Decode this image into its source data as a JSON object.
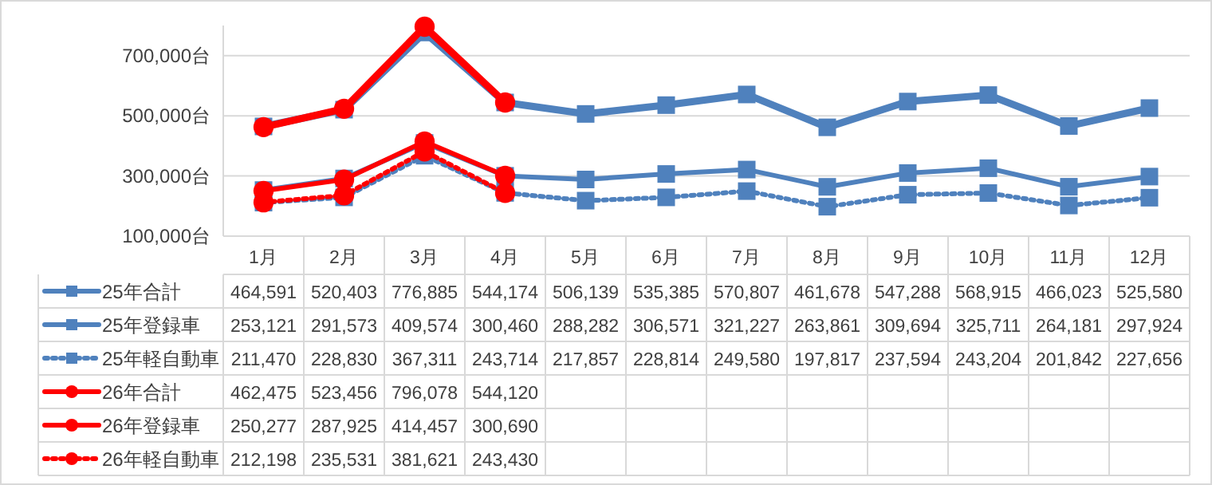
{
  "chart_data": {
    "type": "line",
    "categories": [
      "1月",
      "2月",
      "3月",
      "4月",
      "5月",
      "6月",
      "7月",
      "8月",
      "9月",
      "10月",
      "11月",
      "12月"
    ],
    "series": [
      {
        "name": "25年合計",
        "color": "#4f81bd",
        "marker": "square",
        "line_style": "solid",
        "values": [
          464591,
          520403,
          776885,
          544174,
          506139,
          535385,
          570807,
          461678,
          547288,
          568915,
          466023,
          525580
        ],
        "value_labels": [
          "464,591",
          "520,403",
          "776,885",
          "544,174",
          "506,139",
          "535,385",
          "570,807",
          "461,678",
          "547,288",
          "568,915",
          "466,023",
          "525,580"
        ]
      },
      {
        "name": "25年登録車",
        "color": "#4f81bd",
        "marker": "square",
        "line_style": "solid",
        "values": [
          253121,
          291573,
          409574,
          300460,
          288282,
          306571,
          321227,
          263861,
          309694,
          325711,
          264181,
          297924
        ],
        "value_labels": [
          "253,121",
          "291,573",
          "409,574",
          "300,460",
          "288,282",
          "306,571",
          "321,227",
          "263,861",
          "309,694",
          "325,711",
          "264,181",
          "297,924"
        ]
      },
      {
        "name": "25年軽自動車",
        "color": "#4f81bd",
        "marker": "square",
        "line_style": "dotted",
        "values": [
          211470,
          228830,
          367311,
          243714,
          217857,
          228814,
          249580,
          197817,
          237594,
          243204,
          201842,
          227656
        ],
        "value_labels": [
          "211,470",
          "228,830",
          "367,311",
          "243,714",
          "217,857",
          "228,814",
          "249,580",
          "197,817",
          "237,594",
          "243,204",
          "201,842",
          "227,656"
        ]
      },
      {
        "name": "26年合計",
        "color": "#ff0000",
        "marker": "circle",
        "line_style": "solid",
        "values": [
          462475,
          523456,
          796078,
          544120,
          null,
          null,
          null,
          null,
          null,
          null,
          null,
          null
        ],
        "value_labels": [
          "462,475",
          "523,456",
          "796,078",
          "544,120",
          null,
          null,
          null,
          null,
          null,
          null,
          null,
          null
        ]
      },
      {
        "name": "26年登録車",
        "color": "#ff0000",
        "marker": "circle",
        "line_style": "solid",
        "values": [
          250277,
          287925,
          414457,
          300690,
          null,
          null,
          null,
          null,
          null,
          null,
          null,
          null
        ],
        "value_labels": [
          "250,277",
          "287,925",
          "414,457",
          "300,690",
          null,
          null,
          null,
          null,
          null,
          null,
          null,
          null
        ]
      },
      {
        "name": "26年軽自動車",
        "color": "#ff0000",
        "marker": "circle",
        "line_style": "dotted",
        "values": [
          212198,
          235531,
          381621,
          243430,
          null,
          null,
          null,
          null,
          null,
          null,
          null,
          null
        ],
        "value_labels": [
          "212,198",
          "235,531",
          "381,621",
          "243,430",
          null,
          null,
          null,
          null,
          null,
          null,
          null,
          null
        ]
      }
    ],
    "ylim": [
      100000,
      800000
    ],
    "yticks": [
      {
        "value": 100000,
        "label": "100,000台"
      },
      {
        "value": 300000,
        "label": "300,000台"
      },
      {
        "value": 500000,
        "label": "500,000台"
      },
      {
        "value": 700000,
        "label": "700,000台"
      }
    ],
    "grid": "y",
    "legend": "bottom"
  }
}
